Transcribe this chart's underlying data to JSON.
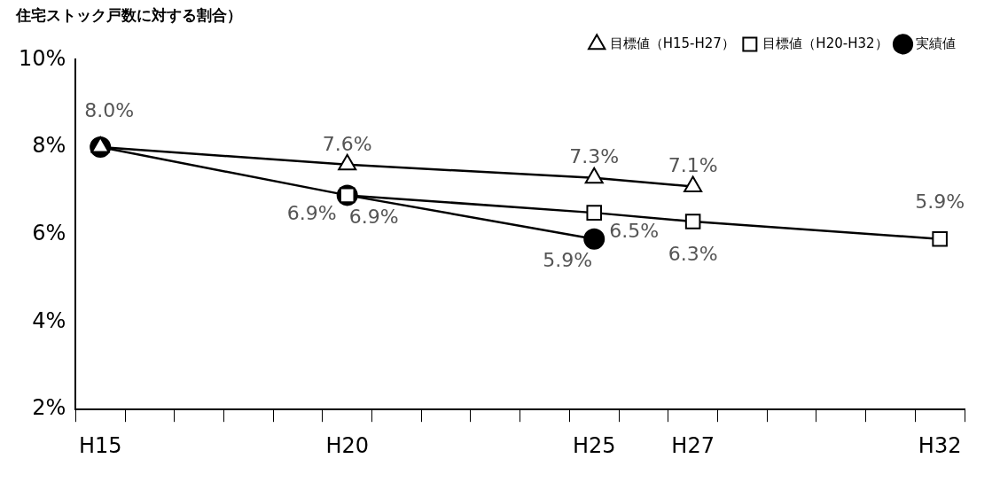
{
  "chart_data": {
    "type": "line",
    "title": "住宅ストック戸数に対する割合）",
    "categories": [
      "H15",
      null,
      null,
      null,
      null,
      "H20",
      null,
      null,
      null,
      null,
      "H25",
      null,
      "H27",
      null,
      null,
      null,
      null,
      "H32"
    ],
    "ylim": [
      2,
      10
    ],
    "yticks": [
      {
        "value": 2,
        "label": "2%"
      },
      {
        "value": 4,
        "label": "4%"
      },
      {
        "value": 6,
        "label": "6%"
      },
      {
        "value": 8,
        "label": "8%"
      },
      {
        "value": 10,
        "label": "10%"
      }
    ],
    "grid": false,
    "legend": "top right",
    "series": [
      {
        "name": "目標値（H15-H27）",
        "color": "#000000",
        "marker": "triangle",
        "values": [
          8.0,
          null,
          null,
          null,
          null,
          7.6,
          null,
          null,
          null,
          null,
          7.3,
          null,
          7.1,
          null,
          null,
          null,
          null,
          null
        ],
        "value_labels": [
          null,
          null,
          null,
          null,
          null,
          "7.6%",
          null,
          null,
          null,
          null,
          "7.3%",
          null,
          "7.1%",
          null,
          null,
          null,
          null,
          null
        ]
      },
      {
        "name": "目標値（H20-H32）",
        "color": "#000000",
        "marker": "square",
        "values": [
          null,
          null,
          null,
          null,
          null,
          6.9,
          null,
          null,
          null,
          null,
          6.5,
          null,
          6.3,
          null,
          null,
          null,
          null,
          5.9
        ],
        "value_labels": [
          null,
          null,
          null,
          null,
          null,
          "6.9%",
          null,
          null,
          null,
          null,
          "6.5%",
          null,
          "6.3%",
          null,
          null,
          null,
          null,
          "5.9%"
        ]
      },
      {
        "name": "実績値",
        "color": "#000000",
        "marker": "circle",
        "values": [
          8.0,
          null,
          null,
          null,
          null,
          6.9,
          null,
          null,
          null,
          null,
          5.9,
          null,
          null,
          null,
          null,
          null,
          null,
          null
        ],
        "value_labels": [
          "8.0%",
          null,
          null,
          null,
          null,
          "6.9%",
          null,
          null,
          null,
          null,
          "5.9%",
          null,
          null,
          null,
          null,
          null,
          null,
          null
        ]
      }
    ]
  }
}
